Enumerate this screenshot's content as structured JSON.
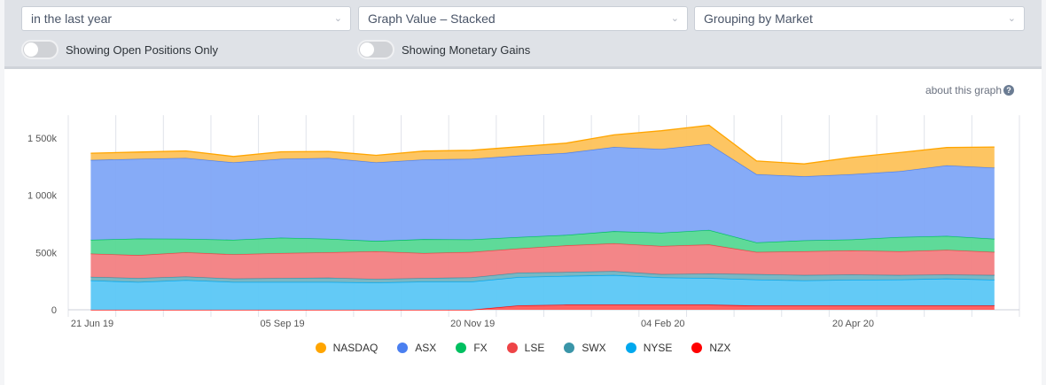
{
  "filters": {
    "period": {
      "value": "in the last year"
    },
    "graph_value": {
      "value": "Graph Value – Stacked"
    },
    "grouping": {
      "value": "Grouping by Market"
    }
  },
  "toggles": [
    {
      "label": "Showing Open Positions Only",
      "on": false
    },
    {
      "label": "Showing Monetary Gains",
      "on": false
    }
  ],
  "about_link": {
    "label": "about this graph",
    "icon": "question-circle-icon"
  },
  "chart_data": {
    "type": "area",
    "stacked": true,
    "grid": true,
    "legend_position": "bottom",
    "x_range": [
      "2019-06-21",
      "2020-07-05"
    ],
    "y_range": [
      0,
      1700
    ],
    "y_ticks": [
      0,
      500,
      1000,
      1500
    ],
    "y_tick_labels": [
      "0",
      "500k",
      "1 000k",
      "1 500k"
    ],
    "x_ticks": [
      "2019-06-21",
      "2019-09-05",
      "2019-11-20",
      "2020-02-04",
      "2020-04-20"
    ],
    "x_tick_labels": [
      "21 Jun 19",
      "05 Sep 19",
      "20 Nov 19",
      "04 Feb 20",
      "20 Apr 20"
    ],
    "x": [
      "2019-06-30",
      "2019-07-19",
      "2019-08-07",
      "2019-08-26",
      "2019-09-14",
      "2019-10-03",
      "2019-10-22",
      "2019-11-10",
      "2019-11-29",
      "2019-12-18",
      "2020-01-06",
      "2020-01-25",
      "2020-02-13",
      "2020-03-03",
      "2020-03-22",
      "2020-04-10",
      "2020-04-29",
      "2020-05-18",
      "2020-06-06",
      "2020-06-25"
    ],
    "series": [
      {
        "name": "NZX",
        "color": "#ff0000",
        "fill": "#ff5a5a",
        "values": [
          0,
          0,
          0,
          0,
          0,
          0,
          0,
          0,
          0,
          38,
          44,
          44,
          44,
          44,
          36,
          36,
          36,
          36,
          36,
          36
        ]
      },
      {
        "name": "NYSE",
        "color": "#00a8ee",
        "fill": "#5bc7f5",
        "values": [
          256,
          243,
          259,
          243,
          243,
          243,
          238,
          246,
          246,
          247,
          251,
          259,
          238,
          233,
          228,
          220,
          226,
          228,
          236,
          226
        ]
      },
      {
        "name": "SWX",
        "color": "#3a95a8",
        "fill": "#72b4c2",
        "values": [
          31,
          34,
          31,
          29,
          34,
          37,
          31,
          31,
          36,
          39,
          34,
          34,
          29,
          39,
          47,
          47,
          46,
          39,
          36,
          41
        ]
      },
      {
        "name": "LSE",
        "color": "#ee4447",
        "fill": "#f27f82",
        "values": [
          203,
          200,
          212,
          212,
          218,
          222,
          241,
          218,
          223,
          212,
          233,
          243,
          246,
          254,
          194,
          207,
          210,
          207,
          215,
          202
        ]
      },
      {
        "name": "FX",
        "color": "#00c060",
        "fill": "#56d893",
        "values": [
          121,
          145,
          117,
          127,
          134,
          117,
          91,
          121,
          109,
          99,
          91,
          106,
          116,
          127,
          83,
          96,
          96,
          125,
          122,
          114
        ]
      },
      {
        "name": "ASX",
        "color": "#4a7ff0",
        "fill": "#80a6f7",
        "values": [
          697,
          696,
          707,
          676,
          689,
          707,
          686,
          697,
          704,
          712,
          717,
          736,
          731,
          751,
          596,
          560,
          570,
          575,
          616,
          622
        ]
      },
      {
        "name": "NASDAQ",
        "color": "#ffa500",
        "fill": "#fdc25a",
        "values": [
          60,
          60,
          62,
          52,
          62,
          57,
          62,
          73,
          75,
          77,
          86,
          106,
          160,
          163,
          116,
          108,
          147,
          163,
          156,
          181
        ]
      }
    ],
    "legend_order": [
      "NASDAQ",
      "ASX",
      "FX",
      "LSE",
      "SWX",
      "NYSE",
      "NZX"
    ]
  }
}
